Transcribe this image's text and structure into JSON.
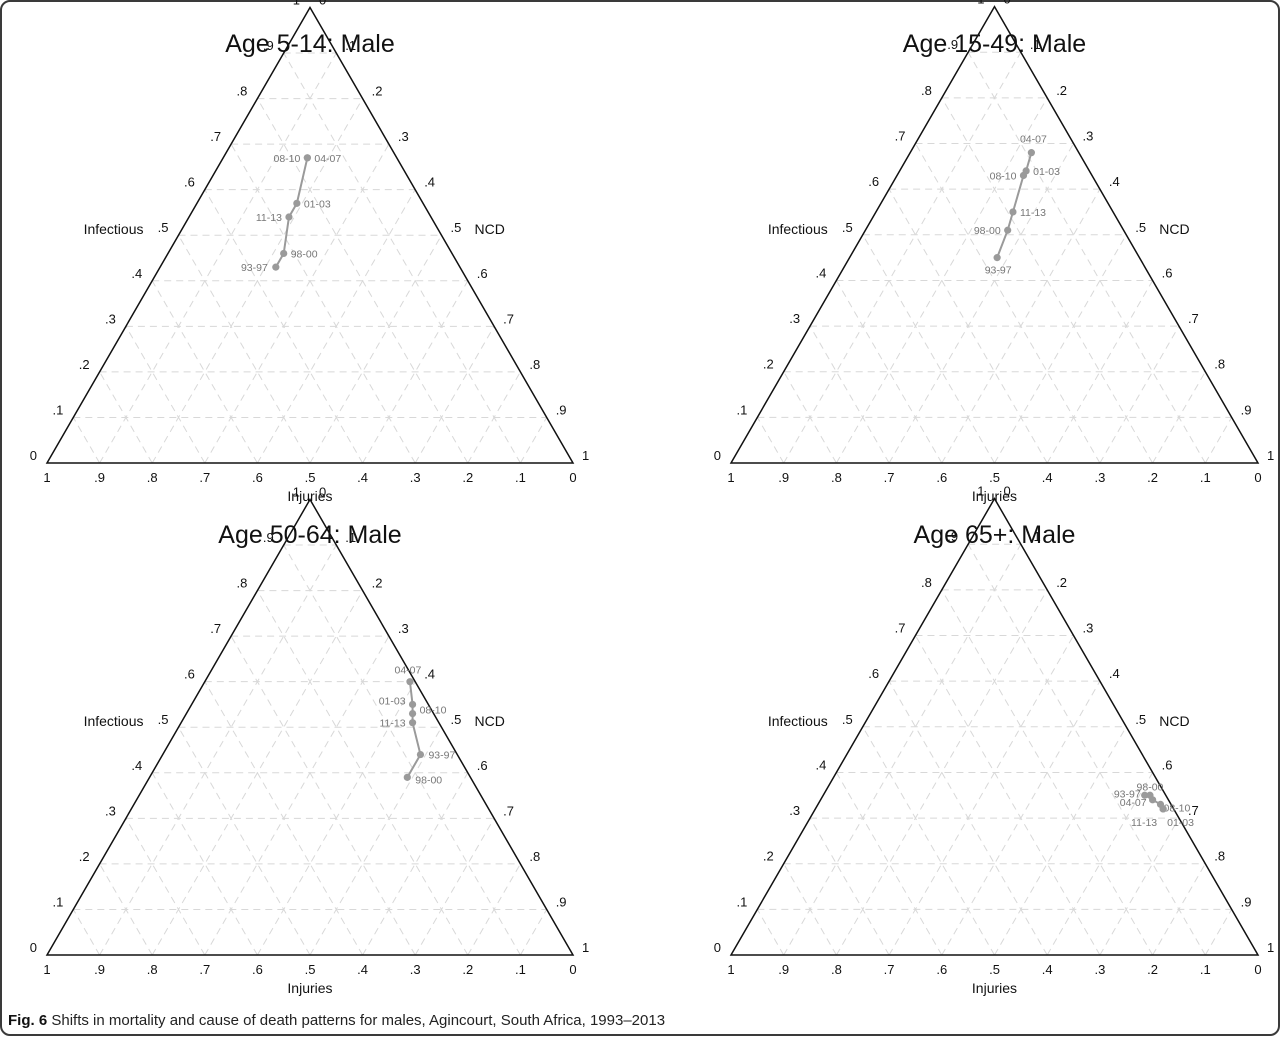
{
  "figure": {
    "caption_lead": "Fig. 6",
    "caption_text": "Shifts in mortality and cause of death patterns for males, Agincourt, South Africa, 1993–2013"
  },
  "style": {
    "line_color": "#9a9a9a",
    "grid_color": "#d8d8d8",
    "axis_color": "#111111"
  },
  "ternary": {
    "left_axis": {
      "label": "Infectious",
      "ticks": [
        "0",
        ".1",
        ".2",
        ".3",
        ".4",
        ".5",
        ".6",
        ".7",
        ".8",
        ".9",
        "1"
      ]
    },
    "right_axis": {
      "label": "NCD",
      "ticks": [
        "0",
        ".1",
        ".2",
        ".3",
        ".4",
        ".5",
        ".6",
        ".7",
        ".8",
        ".9",
        "1"
      ]
    },
    "bottom_axis": {
      "label": "Injuries",
      "ticks": [
        "1",
        ".9",
        ".8",
        ".7",
        ".6",
        ".5",
        ".4",
        ".3",
        ".2",
        ".1",
        "0"
      ]
    }
  },
  "chart_data": [
    {
      "type": "scatter",
      "subtype": "ternary",
      "title": "Age 5-14: Male",
      "axes": [
        "Infectious",
        "NCD",
        "Injuries"
      ],
      "points": [
        {
          "label": "93-97",
          "infectious": 0.43,
          "ncd": 0.22,
          "injuries": 0.35
        },
        {
          "label": "98-00",
          "infectious": 0.46,
          "ncd": 0.22,
          "injuries": 0.32
        },
        {
          "label": "11-13",
          "infectious": 0.54,
          "ncd": 0.19,
          "injuries": 0.27
        },
        {
          "label": "01-03",
          "infectious": 0.57,
          "ncd": 0.19,
          "injuries": 0.24
        },
        {
          "label": "08-10",
          "infectious": 0.67,
          "ncd": 0.16,
          "injuries": 0.17
        },
        {
          "label": "04-07",
          "infectious": 0.67,
          "ncd": 0.16,
          "injuries": 0.17
        }
      ]
    },
    {
      "type": "scatter",
      "subtype": "ternary",
      "title": "Age 15-49: Male",
      "axes": [
        "Infectious",
        "NCD",
        "Injuries"
      ],
      "points": [
        {
          "label": "93-97",
          "infectious": 0.45,
          "ncd": 0.28,
          "injuries": 0.27
        },
        {
          "label": "98-00",
          "infectious": 0.51,
          "ncd": 0.27,
          "injuries": 0.22
        },
        {
          "label": "11-13",
          "infectious": 0.55,
          "ncd": 0.26,
          "injuries": 0.19
        },
        {
          "label": "08-10",
          "infectious": 0.63,
          "ncd": 0.24,
          "injuries": 0.13
        },
        {
          "label": "01-03",
          "infectious": 0.64,
          "ncd": 0.24,
          "injuries": 0.12
        },
        {
          "label": "04-07",
          "infectious": 0.68,
          "ncd": 0.23,
          "injuries": 0.09
        }
      ]
    },
    {
      "type": "scatter",
      "subtype": "ternary",
      "title": "Age 50-64: Male",
      "axes": [
        "Infectious",
        "NCD",
        "Injuries"
      ],
      "points": [
        {
          "label": "98-00",
          "infectious": 0.39,
          "ncd": 0.49,
          "injuries": 0.12
        },
        {
          "label": "93-97",
          "infectious": 0.44,
          "ncd": 0.49,
          "injuries": 0.07
        },
        {
          "label": "11-13",
          "infectious": 0.51,
          "ncd": 0.44,
          "injuries": 0.05
        },
        {
          "label": "08-10",
          "infectious": 0.53,
          "ncd": 0.43,
          "injuries": 0.04
        },
        {
          "label": "01-03",
          "infectious": 0.55,
          "ncd": 0.42,
          "injuries": 0.03
        },
        {
          "label": "04-07",
          "infectious": 0.6,
          "ncd": 0.39,
          "injuries": 0.01
        }
      ]
    },
    {
      "type": "scatter",
      "subtype": "ternary",
      "title": "Age 65+: Male",
      "axes": [
        "Infectious",
        "NCD",
        "Injuries"
      ],
      "points": [
        {
          "label": "93-97",
          "infectious": 0.35,
          "ncd": 0.61,
          "injuries": 0.04
        },
        {
          "label": "98-00",
          "infectious": 0.35,
          "ncd": 0.62,
          "injuries": 0.03
        },
        {
          "label": "04-07",
          "infectious": 0.34,
          "ncd": 0.63,
          "injuries": 0.03
        },
        {
          "label": "08-10",
          "infectious": 0.33,
          "ncd": 0.65,
          "injuries": 0.02
        },
        {
          "label": "11-13",
          "infectious": 0.32,
          "ncd": 0.66,
          "injuries": 0.02
        },
        {
          "label": "01-03",
          "infectious": 0.32,
          "ncd": 0.66,
          "injuries": 0.02
        }
      ]
    }
  ]
}
